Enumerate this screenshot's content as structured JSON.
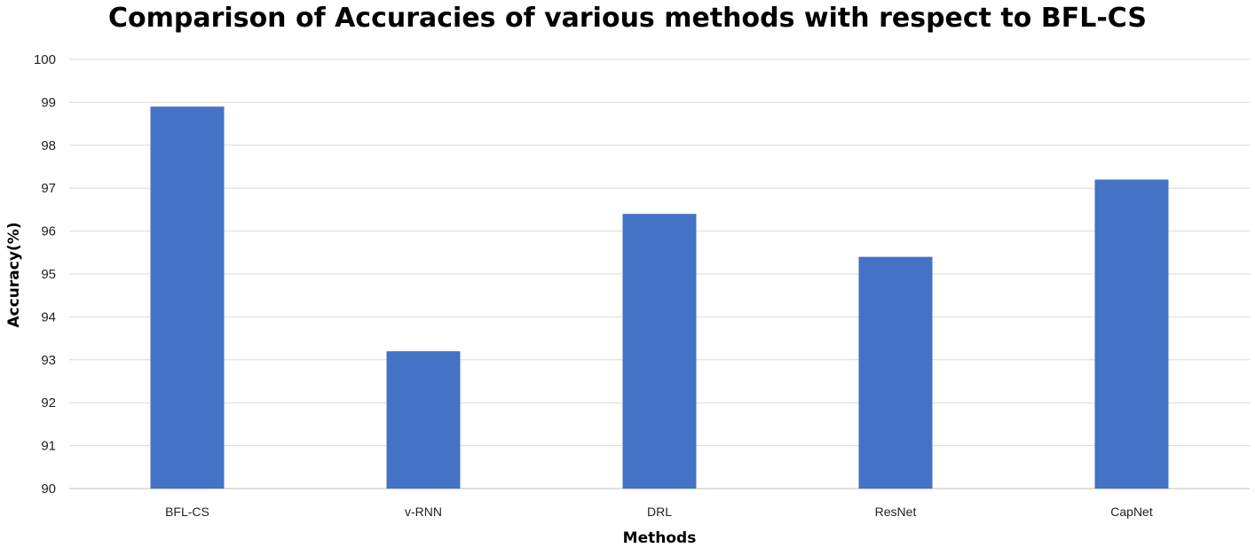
{
  "chart_data": {
    "type": "bar",
    "title": "Comparison of Accuracies of various methods with respect to BFL-CS",
    "xlabel": "Methods",
    "ylabel": "Accuracy(%)",
    "categories": [
      "BFL-CS",
      "v-RNN",
      "DRL",
      "ResNet",
      "CapNet"
    ],
    "values": [
      98.9,
      93.2,
      96.4,
      95.4,
      97.2
    ],
    "ylim": [
      90,
      100
    ],
    "yticks": [
      "90",
      "91",
      "92",
      "93",
      "94",
      "95",
      "96",
      "97",
      "98",
      "99",
      "100"
    ],
    "grid": true,
    "legend": "none",
    "bar_color": "#4472c4"
  }
}
